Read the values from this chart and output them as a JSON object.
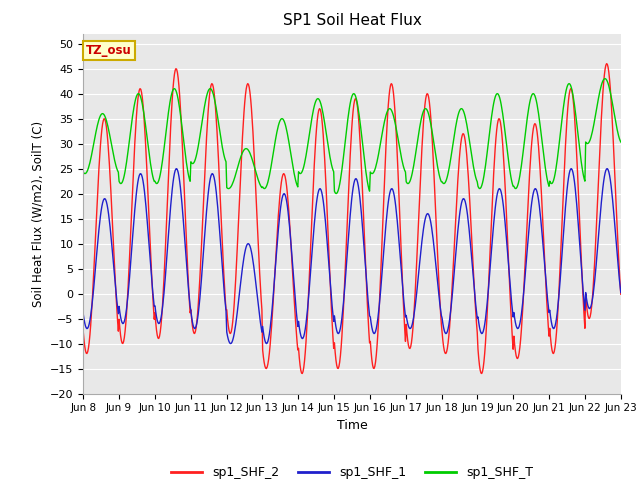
{
  "title": "SP1 Soil Heat Flux",
  "xlabel": "Time",
  "ylabel": "Soil Heat Flux (W/m2), SoilT (C)",
  "ylim": [
    -20,
    52
  ],
  "yticks": [
    -20,
    -15,
    -10,
    -5,
    0,
    5,
    10,
    15,
    20,
    25,
    30,
    35,
    40,
    45,
    50
  ],
  "bg_color": "#e8e8e8",
  "annotation_text": "TZ_osu",
  "annotation_color": "#cc0000",
  "annotation_bg": "#ffffcc",
  "annotation_border": "#ccaa00",
  "legend_labels": [
    "sp1_SHF_2",
    "sp1_SHF_1",
    "sp1_SHF_T"
  ],
  "line_colors": [
    "#ff2020",
    "#2020cc",
    "#00cc00"
  ],
  "xtick_labels": [
    "Jun 8",
    "Jun 9",
    "Jun 10",
    "Jun 11",
    "Jun 12",
    "Jun 13",
    "Jun 14",
    "Jun 15",
    "Jun 16",
    "Jun 17",
    "Jun 18",
    "Jun 19",
    "Jun 20",
    "Jun 21",
    "Jun 22",
    "Jun 23"
  ],
  "n_days": 15,
  "points_per_day": 48,
  "shf2_peaks": [
    35,
    41,
    45,
    42,
    42,
    24,
    37,
    39,
    42,
    40,
    32,
    35,
    34,
    41,
    46
  ],
  "shf2_troughs": [
    -12,
    -10,
    -9,
    -8,
    -8,
    -15,
    -16,
    -15,
    -15,
    -11,
    -12,
    -16,
    -13,
    -12,
    -5
  ],
  "shf2_phase": 0.35,
  "shf1_peaks": [
    19,
    24,
    25,
    24,
    10,
    20,
    21,
    23,
    21,
    16,
    19,
    21,
    21,
    25,
    25
  ],
  "shf1_troughs": [
    -7,
    -6,
    -6,
    -7,
    -10,
    -10,
    -9,
    -8,
    -8,
    -7,
    -8,
    -8,
    -7,
    -7,
    -3
  ],
  "shf1_phase": 0.36,
  "shft_peaks": [
    36,
    40,
    41,
    41,
    29,
    35,
    39,
    40,
    37,
    37,
    37,
    40,
    40,
    42,
    43
  ],
  "shft_troughs": [
    24,
    22,
    22,
    26,
    21,
    21,
    24,
    20,
    24,
    22,
    22,
    21,
    21,
    22,
    30
  ],
  "shft_phase": 0.3
}
